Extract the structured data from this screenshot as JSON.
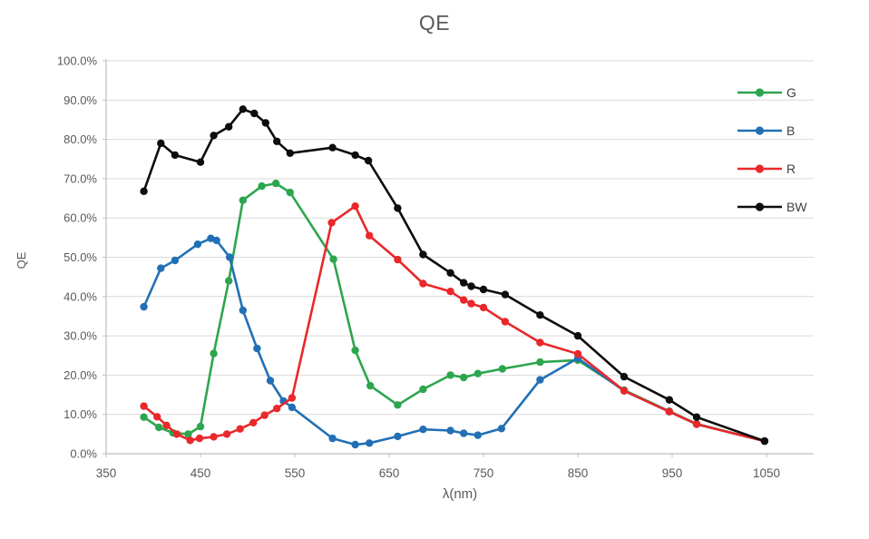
{
  "chart": {
    "title": "QE",
    "x_axis_title": "λ(nm)",
    "y_axis_title": "QE",
    "text_color": "#595959",
    "legend_text_color": "#404040",
    "gridline_color": "#D9D9D9",
    "axis_line_color": "#BDBDBD",
    "background_color": "#FFFFFF"
  },
  "legend": {
    "items": [
      {
        "label": "G",
        "color": "#2CA64E"
      },
      {
        "label": "B",
        "color": "#2170B5"
      },
      {
        "label": "R",
        "color": "#E9282B"
      },
      {
        "label": "BW",
        "color": "#0D0D0D"
      }
    ]
  },
  "chart_data": {
    "type": "line",
    "title": "QE",
    "xlabel": "λ(nm)",
    "ylabel": "QE",
    "xlim": [
      350,
      1100
    ],
    "ylim": [
      0,
      100
    ],
    "x_ticks": [
      350,
      450,
      550,
      650,
      750,
      850,
      950,
      1050
    ],
    "x_tick_labels": [
      "350",
      "450",
      "550",
      "650",
      "750",
      "850",
      "950",
      "1050"
    ],
    "y_ticks": [
      0,
      10,
      20,
      30,
      40,
      50,
      60,
      70,
      80,
      90,
      100
    ],
    "y_tick_labels": [
      "0.0%",
      "10.0%",
      "20.0%",
      "30.0%",
      "40.0%",
      "50.0%",
      "60.0%",
      "70.0%",
      "80.0%",
      "90.0%",
      "100.0%"
    ],
    "grid": "horizontal",
    "legend_position": "right",
    "marker": "circle",
    "series": [
      {
        "name": "G",
        "color": "#2CA64E",
        "points": [
          [
            390,
            9.3
          ],
          [
            406,
            6.7
          ],
          [
            421,
            5.3
          ],
          [
            437,
            5.0
          ],
          [
            450,
            6.9
          ],
          [
            464,
            25.5
          ],
          [
            480,
            44.0
          ],
          [
            495,
            64.5
          ],
          [
            515,
            68.1
          ],
          [
            530,
            68.8
          ],
          [
            545,
            66.5
          ],
          [
            591,
            49.5
          ],
          [
            614,
            26.3
          ],
          [
            630,
            17.3
          ],
          [
            659,
            12.4
          ],
          [
            686,
            16.4
          ],
          [
            715,
            20.0
          ],
          [
            729,
            19.4
          ],
          [
            744,
            20.4
          ],
          [
            770,
            21.6
          ],
          [
            810,
            23.3
          ],
          [
            850,
            23.8
          ],
          [
            899,
            16.2
          ],
          [
            947,
            10.8
          ],
          [
            976,
            7.6
          ],
          [
            1048,
            3.2
          ]
        ]
      },
      {
        "name": "B",
        "color": "#2170B5",
        "points": [
          [
            390,
            37.4
          ],
          [
            408,
            47.2
          ],
          [
            423,
            49.2
          ],
          [
            447,
            53.3
          ],
          [
            461,
            54.8
          ],
          [
            467,
            54.3
          ],
          [
            481,
            50.0
          ],
          [
            495,
            36.5
          ],
          [
            510,
            26.8
          ],
          [
            524,
            18.6
          ],
          [
            538,
            13.4
          ],
          [
            547,
            11.8
          ],
          [
            590,
            3.9
          ],
          [
            614,
            2.3
          ],
          [
            629,
            2.7
          ],
          [
            659,
            4.4
          ],
          [
            686,
            6.2
          ],
          [
            715,
            5.9
          ],
          [
            729,
            5.2
          ],
          [
            744,
            4.7
          ],
          [
            769,
            6.4
          ],
          [
            810,
            18.8
          ],
          [
            850,
            24.3
          ],
          [
            899,
            16.0
          ],
          [
            947,
            10.7
          ],
          [
            976,
            7.5
          ],
          [
            1048,
            3.2
          ]
        ]
      },
      {
        "name": "R",
        "color": "#E9282B",
        "points": [
          [
            390,
            12.1
          ],
          [
            404,
            9.4
          ],
          [
            414,
            7.2
          ],
          [
            425,
            5.0
          ],
          [
            439,
            3.4
          ],
          [
            449,
            3.9
          ],
          [
            464,
            4.3
          ],
          [
            478,
            5.0
          ],
          [
            492,
            6.3
          ],
          [
            506,
            7.9
          ],
          [
            518,
            9.8
          ],
          [
            531,
            11.5
          ],
          [
            547,
            14.2
          ],
          [
            589,
            58.8
          ],
          [
            614,
            63.0
          ],
          [
            629,
            55.5
          ],
          [
            659,
            49.4
          ],
          [
            686,
            43.3
          ],
          [
            715,
            41.3
          ],
          [
            729,
            39.1
          ],
          [
            737,
            38.2
          ],
          [
            750,
            37.2
          ],
          [
            773,
            33.6
          ],
          [
            810,
            28.3
          ],
          [
            850,
            25.4
          ],
          [
            899,
            16.0
          ],
          [
            947,
            10.7
          ],
          [
            976,
            7.5
          ],
          [
            1048,
            3.2
          ]
        ]
      },
      {
        "name": "BW",
        "color": "#0D0D0D",
        "points": [
          [
            390,
            66.8
          ],
          [
            408,
            79.0
          ],
          [
            423,
            76.0
          ],
          [
            450,
            74.2
          ],
          [
            464,
            81.0
          ],
          [
            480,
            83.2
          ],
          [
            495,
            87.7
          ],
          [
            507,
            86.6
          ],
          [
            519,
            84.2
          ],
          [
            531,
            79.5
          ],
          [
            545,
            76.5
          ],
          [
            590,
            77.9
          ],
          [
            614,
            76.0
          ],
          [
            628,
            74.6
          ],
          [
            659,
            62.5
          ],
          [
            686,
            50.7
          ],
          [
            715,
            46.0
          ],
          [
            729,
            43.5
          ],
          [
            737,
            42.6
          ],
          [
            750,
            41.8
          ],
          [
            773,
            40.5
          ],
          [
            810,
            35.3
          ],
          [
            850,
            30.0
          ],
          [
            899,
            19.6
          ],
          [
            947,
            13.7
          ],
          [
            976,
            9.3
          ],
          [
            1048,
            3.2
          ]
        ]
      }
    ]
  }
}
